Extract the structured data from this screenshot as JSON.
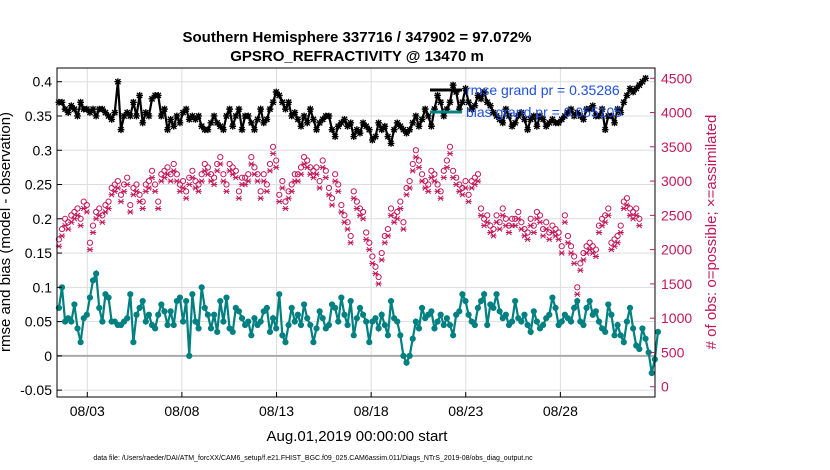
{
  "chart_data": {
    "type": "line",
    "title_line1": "Southern Hemisphere 337716 / 347902 = 97.072%",
    "title_line2": "GPSRO_REFRACTIVITY @ 13470 m",
    "xlabel": "Aug.01,2019 00:00:00 start",
    "ylabel_left": "rmse and bias (model - observation)",
    "ylabel_right": "# of obs: o=possible; ×=assimilated",
    "xlim": [
      1.4,
      33.0
    ],
    "ylim_left": [
      -0.06,
      0.42
    ],
    "ylim_right": [
      -150,
      4650
    ],
    "x_ticks": [
      3,
      8,
      13,
      18,
      23,
      28
    ],
    "x_tick_labels": [
      "08/03",
      "08/08",
      "08/13",
      "08/18",
      "08/23",
      "08/28"
    ],
    "y_ticks_left": [
      -0.05,
      0,
      0.05,
      0.1,
      0.15,
      0.2,
      0.25,
      0.3,
      0.35,
      0.4
    ],
    "y_tick_labels_left": [
      "-0.05",
      "0",
      "0.05",
      "0.1",
      "0.15",
      "0.2",
      "0.25",
      "0.3",
      "0.35",
      "0.4"
    ],
    "y_ticks_right": [
      0,
      500,
      1000,
      1500,
      2000,
      2500,
      3000,
      3500,
      4000,
      4500
    ],
    "y_tick_labels_right": [
      "0",
      "500",
      "1000",
      "1500",
      "2000",
      "2500",
      "3000",
      "3500",
      "4000",
      "4500"
    ],
    "legend": [
      {
        "label": "rmse grand pr = 0.35286",
        "color": "#000000"
      },
      {
        "label": "bias grand pr = 0.055105",
        "color": "#008080"
      }
    ],
    "footer": "data file: /Users/raeder/DAI/ATM_forcXX/CAM6_setup/f.e21.FHIST_BGC.f09_025.CAM6assim.011/Diags_NTrS_2019-08/obs_diag_output.nc",
    "colors": {
      "rmse": "#000000",
      "bias": "#008080",
      "obs": "#c2185b",
      "zero_line": "#aaaaaa",
      "grid": "#dddddd"
    },
    "series": [
      {
        "name": "rmse",
        "values": [
          0.37,
          0.37,
          0.36,
          0.355,
          0.365,
          0.36,
          0.35,
          0.37,
          0.36,
          0.36,
          0.355,
          0.36,
          0.35,
          0.36,
          0.36,
          0.355,
          0.35,
          0.345,
          0.355,
          0.4,
          0.33,
          0.35,
          0.355,
          0.35,
          0.37,
          0.35,
          0.38,
          0.34,
          0.355,
          0.35,
          0.375,
          0.38,
          0.38,
          0.35,
          0.36,
          0.33,
          0.345,
          0.335,
          0.35,
          0.34,
          0.355,
          0.36,
          0.345,
          0.35,
          0.345,
          0.35,
          0.335,
          0.33,
          0.33,
          0.34,
          0.35,
          0.34,
          0.335,
          0.33,
          0.35,
          0.36,
          0.335,
          0.35,
          0.36,
          0.33,
          0.35,
          0.35,
          0.34,
          0.33,
          0.345,
          0.36,
          0.34,
          0.345,
          0.36,
          0.37,
          0.385,
          0.38,
          0.37,
          0.36,
          0.37,
          0.35,
          0.355,
          0.345,
          0.335,
          0.35,
          0.34,
          0.36,
          0.345,
          0.33,
          0.34,
          0.345,
          0.35,
          0.35,
          0.33,
          0.32,
          0.335,
          0.34,
          0.345,
          0.335,
          0.34,
          0.32,
          0.33,
          0.325,
          0.34,
          0.335,
          0.33,
          0.315,
          0.32,
          0.34,
          0.33,
          0.335,
          0.32,
          0.31,
          0.33,
          0.34,
          0.335,
          0.33,
          0.325,
          0.33,
          0.34,
          0.35,
          0.335,
          0.345,
          0.36,
          0.35,
          0.335,
          0.36,
          0.38,
          0.37,
          0.35,
          0.36,
          0.37,
          0.395,
          0.385,
          0.36,
          0.37,
          0.39,
          0.37,
          0.36,
          0.365,
          0.38,
          0.375,
          0.385,
          0.37,
          0.365,
          0.355,
          0.35,
          0.345,
          0.34,
          0.36,
          0.35,
          0.335,
          0.34,
          0.35,
          0.355,
          0.345,
          0.33,
          0.345,
          0.35,
          0.335,
          0.35,
          0.345,
          0.335,
          0.34,
          0.345,
          0.34,
          0.34,
          0.345,
          0.35,
          0.355,
          0.36,
          0.35,
          0.355,
          0.35,
          0.345,
          0.36,
          0.36,
          0.365,
          0.35,
          0.35,
          0.36,
          0.33,
          0.35,
          0.35,
          0.34,
          0.36,
          0.355,
          0.37,
          0.38,
          0.39,
          0.385,
          0.39,
          0.395,
          0.4,
          0.405
        ]
      },
      {
        "name": "bias",
        "values": [
          0.07,
          0.1,
          0.05,
          0.055,
          0.05,
          0.075,
          0.04,
          0.02,
          0.055,
          0.06,
          0.085,
          0.11,
          0.12,
          0.07,
          0.05,
          0.09,
          0.085,
          0.05,
          0.05,
          0.045,
          0.045,
          0.05,
          0.055,
          0.09,
          0.02,
          0.06,
          0.07,
          0.08,
          0.05,
          0.06,
          0.045,
          0.04,
          0.06,
          0.075,
          0.065,
          0.045,
          0.065,
          0.045,
          0.08,
          0.085,
          0.05,
          0.08,
          0.0,
          0.09,
          0.05,
          0.04,
          0.1,
          0.07,
          0.06,
          0.04,
          0.06,
          0.035,
          0.08,
          0.05,
          0.085,
          0.04,
          0.035,
          0.07,
          0.065,
          0.055,
          0.045,
          0.05,
          0.03,
          0.055,
          0.045,
          0.05,
          0.065,
          0.07,
          0.035,
          0.055,
          0.04,
          0.09,
          0.03,
          0.02,
          0.045,
          0.07,
          0.05,
          0.06,
          0.045,
          0.075,
          0.055,
          0.045,
          0.02,
          0.04,
          0.065,
          0.055,
          0.04,
          0.045,
          0.075,
          0.07,
          0.05,
          0.085,
          0.06,
          0.045,
          0.08,
          0.03,
          0.055,
          0.07,
          0.06,
          0.05,
          0.02,
          0.05,
          0.055,
          0.04,
          0.06,
          0.045,
          0.03,
          0.08,
          0.055,
          0.05,
          0.03,
          0.0,
          -0.01,
          0.0,
          0.025,
          0.05,
          0.04,
          0.07,
          0.055,
          0.06,
          0.065,
          0.04,
          0.05,
          0.06,
          0.045,
          0.055,
          0.045,
          0.03,
          0.06,
          0.065,
          0.09,
          0.08,
          0.06,
          0.05,
          0.045,
          0.07,
          0.08,
          0.09,
          0.045,
          0.075,
          0.07,
          0.09,
          0.065,
          0.055,
          0.06,
          0.045,
          0.05,
          0.08,
          0.055,
          0.05,
          0.06,
          0.045,
          0.035,
          0.065,
          0.05,
          0.04,
          0.045,
          0.055,
          0.06,
          0.085,
          0.07,
          0.045,
          0.05,
          0.06,
          0.055,
          0.05,
          0.07,
          0.08,
          0.05,
          0.045,
          0.07,
          0.08,
          0.06,
          0.065,
          0.05,
          0.04,
          0.035,
          0.075,
          0.06,
          0.03,
          0.045,
          0.03,
          0.02,
          0.05,
          0.07,
          0.04,
          0.015,
          0.01,
          0.04,
          0.025,
          0.005,
          -0.025,
          -0.005,
          0.035
        ]
      },
      {
        "name": "obs_possible",
        "values": [
          2150,
          2300,
          2450,
          2400,
          2500,
          2550,
          2600,
          2450,
          2700,
          2650,
          2100,
          2350,
          2550,
          2600,
          2500,
          2650,
          2700,
          2900,
          2950,
          3000,
          2800,
          2950,
          3050,
          2650,
          2900,
          2950,
          2800,
          2700,
          2950,
          3000,
          3150,
          2950,
          2700,
          3100,
          3150,
          3200,
          3100,
          3250,
          3100,
          2950,
          3000,
          2850,
          3050,
          3150,
          3000,
          2950,
          3100,
          3250,
          3200,
          3100,
          3050,
          3250,
          3350,
          3100,
          2950,
          3250,
          3200,
          3150,
          2850,
          3050,
          3050,
          3100,
          3350,
          3200,
          3100,
          2850,
          3100,
          2950,
          3250,
          3500,
          3300,
          2800,
          3000,
          2700,
          2850,
          2950,
          3100,
          3100,
          3200,
          3350,
          3300,
          3200,
          3150,
          3200,
          3000,
          3300,
          3150,
          2900,
          2750,
          3100,
          2950,
          2650,
          2500,
          2400,
          2200,
          2850,
          2700,
          2600,
          2550,
          2250,
          2100,
          1900,
          1750,
          1600,
          1950,
          2200,
          2300,
          2600,
          2500,
          2550,
          2700,
          2400,
          2900,
          3000,
          3250,
          3450,
          3300,
          3100,
          3000,
          2950,
          3150,
          3100,
          2950,
          2850,
          3150,
          3300,
          3500,
          3150,
          3050,
          2950,
          2900,
          3000,
          2800,
          3000,
          3050,
          3100,
          2600,
          2450,
          2500,
          2350,
          2300,
          2500,
          2400,
          2600,
          2450,
          2350,
          2450,
          2450,
          2550,
          2400,
          2300,
          2250,
          2450,
          2350,
          2550,
          2500,
          2300,
          2400,
          2250,
          2350,
          2300,
          2250,
          2050,
          2500,
          2200,
          2050,
          1900,
          1450,
          1800,
          1950,
          2050,
          2100,
          2050,
          2000,
          2350,
          2450,
          2500,
          2600,
          2100,
          2150,
          2200,
          2350,
          2700,
          2750,
          2600,
          2550,
          2600,
          2450
        ]
      },
      {
        "name": "obs_assimilated",
        "values": [
          2050,
          2200,
          2350,
          2300,
          2400,
          2450,
          2500,
          2350,
          2600,
          2550,
          2000,
          2250,
          2450,
          2500,
          2400,
          2550,
          2600,
          2800,
          2850,
          2900,
          2700,
          2850,
          2950,
          2550,
          2800,
          2850,
          2700,
          2600,
          2850,
          2900,
          3050,
          2850,
          2600,
          3000,
          3050,
          3100,
          3000,
          3150,
          3000,
          2850,
          2900,
          2750,
          2950,
          3050,
          2900,
          2850,
          3000,
          3150,
          3100,
          3000,
          2950,
          3150,
          3250,
          3000,
          2850,
          3150,
          3100,
          3050,
          2750,
          2950,
          2950,
          3000,
          3250,
          3100,
          3000,
          2750,
          3000,
          2850,
          3150,
          3400,
          3200,
          2700,
          2900,
          2600,
          2750,
          2850,
          3000,
          3000,
          3100,
          3250,
          3200,
          3100,
          3050,
          3100,
          2900,
          3200,
          3050,
          2800,
          2650,
          3000,
          2850,
          2550,
          2400,
          2300,
          2100,
          2750,
          2600,
          2500,
          2450,
          2150,
          2000,
          1800,
          1650,
          1500,
          1850,
          2100,
          2200,
          2500,
          2400,
          2450,
          2600,
          2300,
          2800,
          2900,
          3150,
          3350,
          3200,
          3000,
          2900,
          2850,
          3050,
          3000,
          2850,
          2750,
          3050,
          3200,
          3400,
          3050,
          2950,
          2850,
          2800,
          2900,
          2700,
          2900,
          2950,
          3000,
          2500,
          2350,
          2400,
          2250,
          2200,
          2400,
          2300,
          2500,
          2350,
          2250,
          2350,
          2350,
          2450,
          2300,
          2200,
          2150,
          2350,
          2250,
          2450,
          2400,
          2200,
          2300,
          2150,
          2250,
          2200,
          2150,
          1950,
          2400,
          2100,
          1950,
          1800,
          1350,
          1700,
          1850,
          1950,
          2000,
          1950,
          1900,
          2250,
          2350,
          2400,
          2500,
          2000,
          2050,
          2100,
          2250,
          2600,
          2650,
          2500,
          2450,
          2500,
          2350
        ]
      }
    ]
  }
}
